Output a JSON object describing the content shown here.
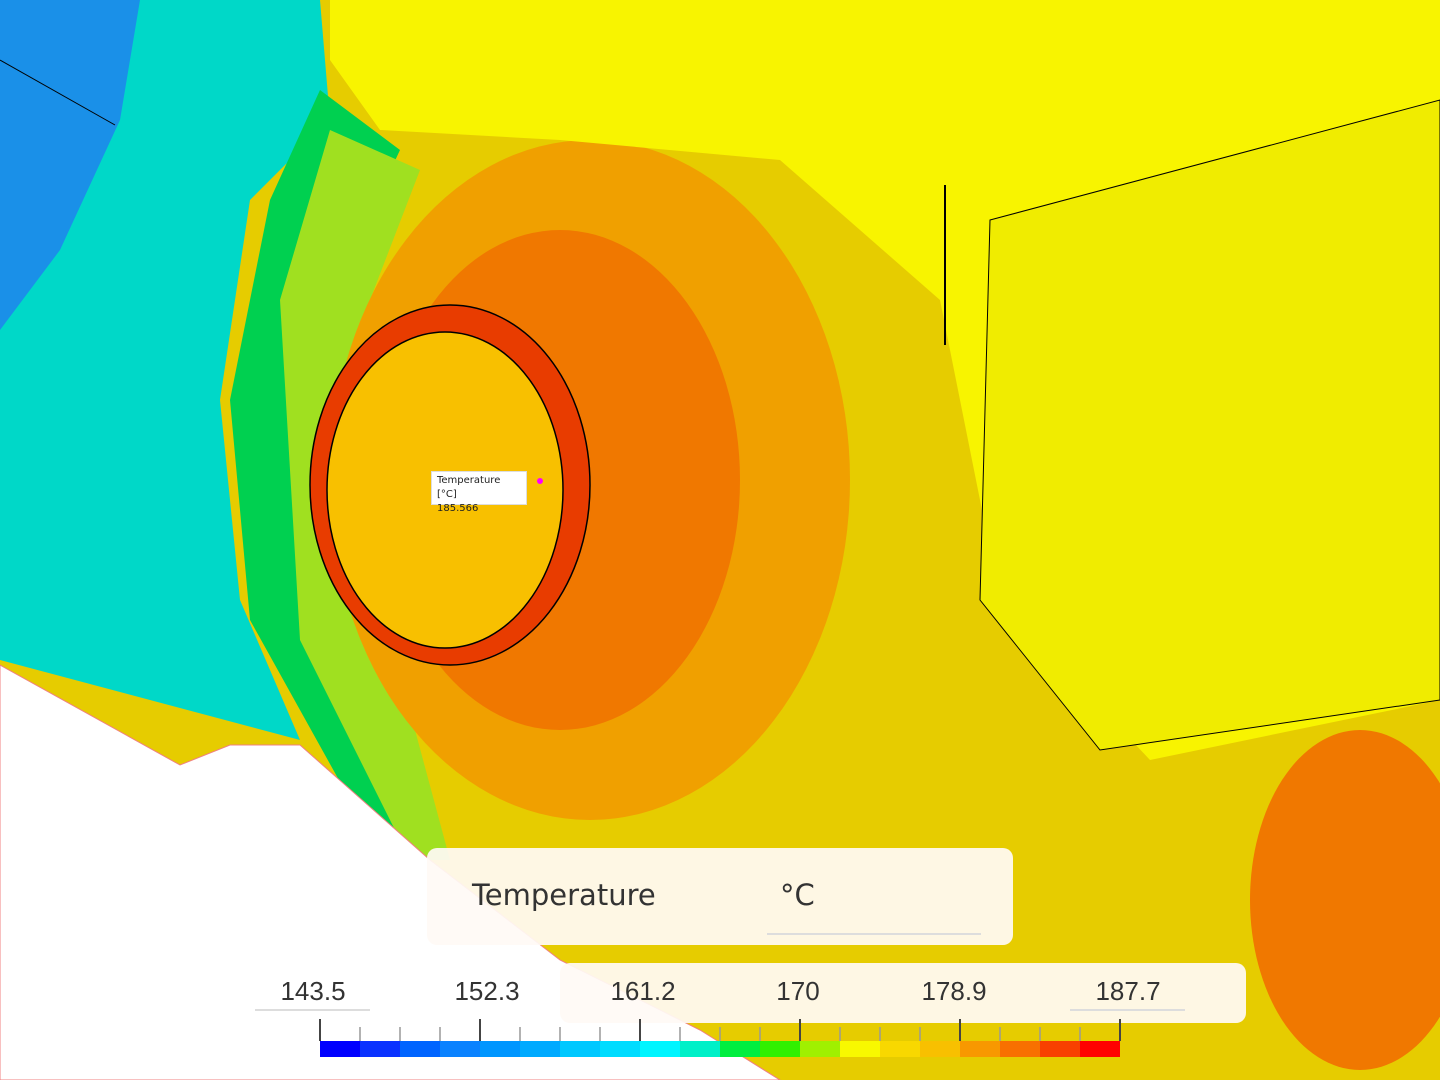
{
  "probe": {
    "label": "Temperature [°C]",
    "value": "185.566",
    "marker_color": "#ff00ff"
  },
  "legend": {
    "title": "Temperature",
    "unit": "°C",
    "tick_labels": [
      "143.5",
      "152.3",
      "161.2",
      "170",
      "178.9",
      "187.7"
    ],
    "min": 143.5,
    "max": 187.7,
    "colors": [
      "#0000ff",
      "#0a32ff",
      "#0064ff",
      "#0a82ff",
      "#0096ff",
      "#00aaff",
      "#00c8ff",
      "#00dcff",
      "#00f5ff",
      "#00f0c8",
      "#00ee40",
      "#30f000",
      "#a0f000",
      "#f8f800",
      "#f8d800",
      "#f8c000",
      "#f89800",
      "#f87000",
      "#f84000",
      "#ff0000"
    ]
  }
}
